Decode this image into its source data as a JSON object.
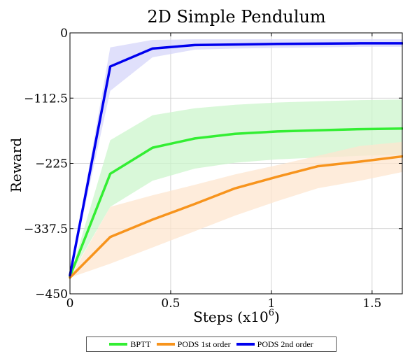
{
  "chart_data": {
    "type": "line",
    "title": "2D Simple Pendulum",
    "xlabel_base": "Steps (x10",
    "xlabel_exp": "6",
    "xlabel_close": ")",
    "ylabel": "Reward",
    "xlim": [
      0,
      1.65
    ],
    "ylim": [
      -450,
      0
    ],
    "xticks": [
      0,
      0.5,
      1,
      1.5
    ],
    "xtick_labels": [
      "0",
      "0.5",
      "1",
      "1.5"
    ],
    "yticks": [
      -450,
      -337.5,
      -225,
      -112.5,
      0
    ],
    "ytick_labels": [
      "−450",
      "−337.5",
      "−225",
      "−112.5",
      "0"
    ],
    "grid": true,
    "legend_position": "bottom",
    "series": [
      {
        "name": "BPTT",
        "color": "#33ee33",
        "band_color": "#ccf5cc",
        "x": [
          0,
          0.2,
          0.41,
          0.62,
          0.82,
          1.03,
          1.23,
          1.44,
          1.65
        ],
        "y": [
          -420,
          -243,
          -198,
          -182,
          -174,
          -170,
          -168,
          -166,
          -165
        ],
        "upper": [
          -420,
          -185,
          -142,
          -130,
          -124,
          -120,
          -118,
          -116,
          -115
        ],
        "lower": [
          -420,
          -300,
          -255,
          -234,
          -224,
          -218,
          -215,
          -212,
          -210
        ]
      },
      {
        "name": "PODS 1st order",
        "color": "#f7941d",
        "band_color": "#fde6cf",
        "x": [
          0,
          0.2,
          0.41,
          0.62,
          0.82,
          1.03,
          1.23,
          1.44,
          1.65
        ],
        "y": [
          -422,
          -352,
          -322,
          -295,
          -268,
          -248,
          -230,
          -222,
          -213
        ],
        "upper": [
          -422,
          -300,
          -280,
          -262,
          -244,
          -228,
          -212,
          -195,
          -188
        ],
        "lower": [
          -422,
          -398,
          -370,
          -342,
          -315,
          -290,
          -268,
          -255,
          -240
        ]
      },
      {
        "name": "PODS 2nd order",
        "color": "#0000ee",
        "band_color": "#d6d6fa",
        "x": [
          0,
          0.2,
          0.41,
          0.62,
          0.82,
          1.03,
          1.23,
          1.44,
          1.65
        ],
        "y": [
          -418,
          -58,
          -27,
          -21,
          -20,
          -19,
          -18.5,
          -18,
          -18
        ],
        "upper": [
          -418,
          -25,
          -12,
          -11,
          -11,
          -11,
          -11,
          -11,
          -11
        ],
        "lower": [
          -418,
          -100,
          -42,
          -29,
          -27,
          -26,
          -25,
          -24,
          -24
        ]
      }
    ]
  }
}
